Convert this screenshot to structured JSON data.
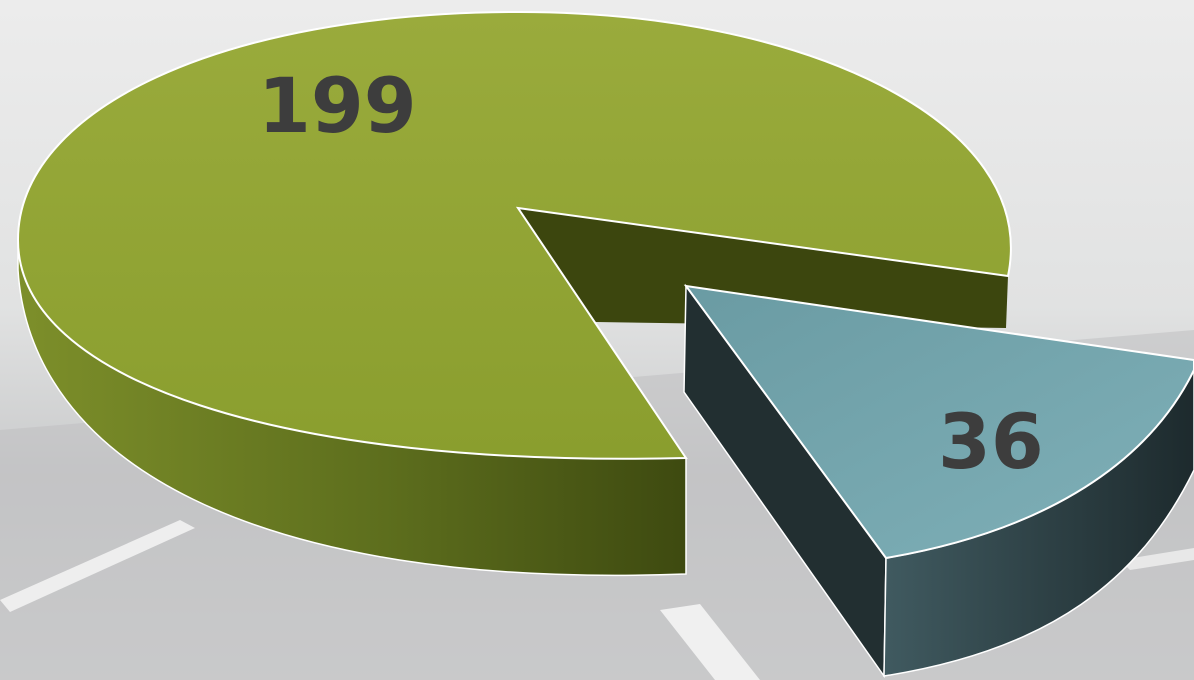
{
  "chart_data": {
    "type": "pie",
    "style": "3d-exploded",
    "title": "",
    "slices": [
      {
        "value": 199,
        "label": "199",
        "color": "#8ea331",
        "side_color": "#5a6a1c",
        "inner_color": "#3c460e"
      },
      {
        "value": 36,
        "label": "36",
        "color": "#71a3ab",
        "side_color": "#2e3f43",
        "inner_color": "#1f2b2e",
        "exploded": true
      }
    ],
    "legend": "none",
    "background": "road-photo"
  }
}
